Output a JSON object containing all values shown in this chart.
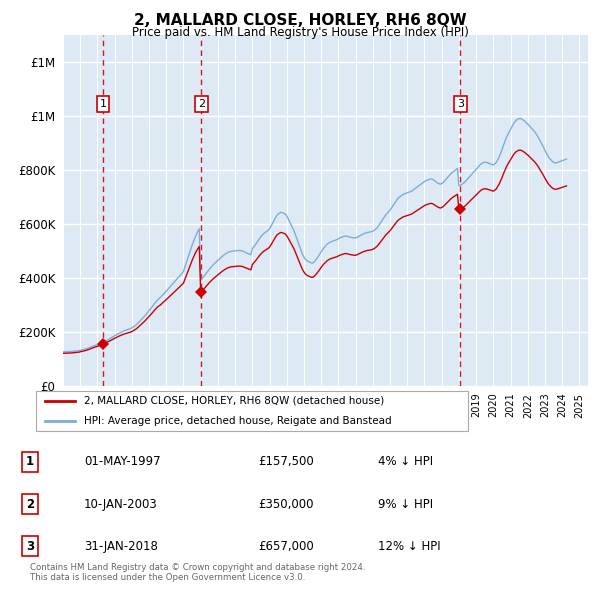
{
  "title": "2, MALLARD CLOSE, HORLEY, RH6 8QW",
  "subtitle": "Price paid vs. HM Land Registry's House Price Index (HPI)",
  "ytick_vals": [
    0,
    200000,
    400000,
    600000,
    800000,
    1000000,
    1200000
  ],
  "ylim": [
    0,
    1300000
  ],
  "xlim_start": 1995.0,
  "xlim_end": 2025.5,
  "bg_color": "#ddeaf6",
  "grid_color": "#ffffff",
  "sale_color": "#cc0000",
  "hpi_color": "#7eadd4",
  "dashed_line_color": "#cc0000",
  "sales": [
    {
      "year": 1997.33,
      "price": 157500,
      "label": "1"
    },
    {
      "year": 2003.03,
      "price": 350000,
      "label": "2"
    },
    {
      "year": 2018.08,
      "price": 657000,
      "label": "3"
    }
  ],
  "legend_sale_label": "2, MALLARD CLOSE, HORLEY, RH6 8QW (detached house)",
  "legend_hpi_label": "HPI: Average price, detached house, Reigate and Banstead",
  "table_rows": [
    {
      "num": "1",
      "date": "01-MAY-1997",
      "price": "£157,500",
      "change": "4% ↓ HPI"
    },
    {
      "num": "2",
      "date": "10-JAN-2003",
      "price": "£350,000",
      "change": "9% ↓ HPI"
    },
    {
      "num": "3",
      "date": "31-JAN-2018",
      "price": "£657,000",
      "change": "12% ↓ HPI"
    }
  ],
  "footnote": "Contains HM Land Registry data © Crown copyright and database right 2024.\nThis data is licensed under the Open Government Licence v3.0.",
  "hpi_years_start": 1995.0,
  "hpi_step": 0.08333,
  "hpi_values": [
    128000,
    128500,
    128200,
    128800,
    129300,
    129100,
    129600,
    130200,
    130800,
    131400,
    131900,
    132500,
    133800,
    135200,
    136100,
    137500,
    139200,
    141000,
    143100,
    145300,
    147500,
    149800,
    151500,
    153200,
    155000,
    157200,
    159500,
    161000,
    164500,
    166800,
    169200,
    172000,
    175000,
    178200,
    181500,
    184800,
    187500,
    190800,
    193500,
    196800,
    199500,
    202500,
    204500,
    206800,
    208500,
    210500,
    212500,
    214500,
    217000,
    220500,
    224000,
    228000,
    233000,
    238500,
    244000,
    249500,
    255000,
    261000,
    267500,
    273500,
    280000,
    287000,
    294000,
    301000,
    308000,
    315000,
    321000,
    325500,
    330000,
    336000,
    342000,
    347000,
    353000,
    359000,
    365000,
    371000,
    377000,
    383000,
    389000,
    395000,
    401000,
    407000,
    413000,
    419500,
    426000,
    442000,
    458000,
    474000,
    491000,
    507500,
    523000,
    537500,
    551500,
    563500,
    574500,
    584000,
    393000,
    399000,
    406000,
    413000,
    420000,
    427000,
    434000,
    440000,
    446000,
    452000,
    457000,
    462000,
    467000,
    472000,
    477000,
    481500,
    486000,
    490000,
    493500,
    496500,
    498500,
    500000,
    501000,
    501500,
    502000,
    503000,
    503500,
    503500,
    503000,
    502000,
    499500,
    497000,
    494500,
    492000,
    490000,
    488000,
    510000,
    517000,
    524000,
    532000,
    540000,
    548000,
    555000,
    561000,
    566000,
    570000,
    574000,
    578000,
    583000,
    593000,
    603000,
    613000,
    624000,
    633000,
    638000,
    642000,
    645000,
    643000,
    641000,
    638000,
    631000,
    621000,
    610000,
    599000,
    588000,
    577000,
    562000,
    547000,
    532000,
    517000,
    503000,
    489000,
    479000,
    471000,
    466000,
    463000,
    460000,
    458000,
    457000,
    461000,
    467000,
    474000,
    482000,
    490000,
    499000,
    507000,
    514000,
    520000,
    526000,
    530000,
    534000,
    536000,
    538000,
    540000,
    542000,
    544000,
    547000,
    550000,
    552000,
    554000,
    556000,
    557000,
    556000,
    555000,
    553000,
    552000,
    551000,
    550000,
    550000,
    552000,
    555000,
    558000,
    561000,
    564000,
    566000,
    568000,
    570000,
    571000,
    572000,
    573000,
    575000,
    578000,
    583000,
    588000,
    595000,
    603000,
    611000,
    619000,
    627000,
    635000,
    641000,
    647000,
    653000,
    661000,
    669000,
    677000,
    685000,
    693000,
    699000,
    703000,
    707000,
    711000,
    713000,
    715000,
    717000,
    719000,
    721000,
    723000,
    727000,
    731000,
    735000,
    739000,
    743000,
    747000,
    751000,
    755000,
    759000,
    762000,
    764000,
    766000,
    768000,
    768000,
    766000,
    762000,
    758000,
    754000,
    751000,
    749000,
    751000,
    755000,
    761000,
    767000,
    773000,
    779000,
    785000,
    791000,
    795000,
    799000,
    803000,
    807000,
    743000,
    745000,
    748000,
    752000,
    756000,
    762000,
    768000,
    774000,
    780000,
    786000,
    792000,
    798000,
    804000,
    810000,
    816000,
    822000,
    826000,
    829000,
    830000,
    830000,
    828000,
    826000,
    824000,
    822000,
    820000,
    824000,
    829000,
    839000,
    849000,
    862000,
    876000,
    892000,
    906000,
    920000,
    932000,
    942000,
    952000,
    962000,
    972000,
    980000,
    986000,
    990000,
    992000,
    992000,
    990000,
    986000,
    982000,
    976000,
    972000,
    966000,
    960000,
    954000,
    948000,
    942000,
    934000,
    926000,
    916000,
    906000,
    896000,
    886000,
    874000,
    864000,
    854000,
    846000,
    840000,
    834000,
    830000,
    828000,
    828000,
    830000,
    832000,
    834000,
    836000,
    838000,
    840000,
    842000
  ]
}
